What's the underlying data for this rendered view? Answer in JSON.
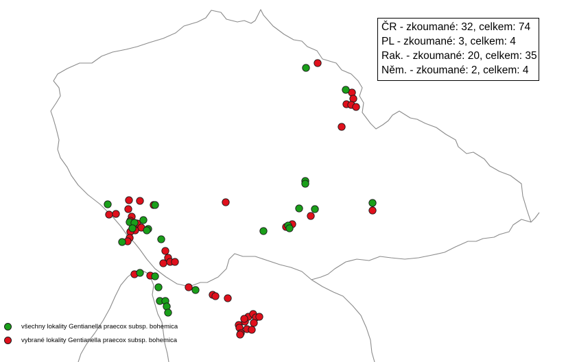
{
  "stats": [
    "ČR - zkoumané: 32, celkem: 74",
    "PL - zkoumané: 3, celkem: 4",
    "Rak. - zkoumané: 20, celkem: 35",
    "Něm. - zkoumané: 2, celkem: 4"
  ],
  "legend": {
    "all": {
      "label": "všechny lokality Gentianella praecox  subsp.  bohemica",
      "color": "#1a9f1a"
    },
    "selected": {
      "label": "vybrané lokality Gentianella praecox  subsp.  bohemica",
      "color": "#e0101c"
    }
  },
  "colors": {
    "border": "#8a8a8a",
    "green": "#1a9f1a",
    "red": "#e0101c"
  }
}
